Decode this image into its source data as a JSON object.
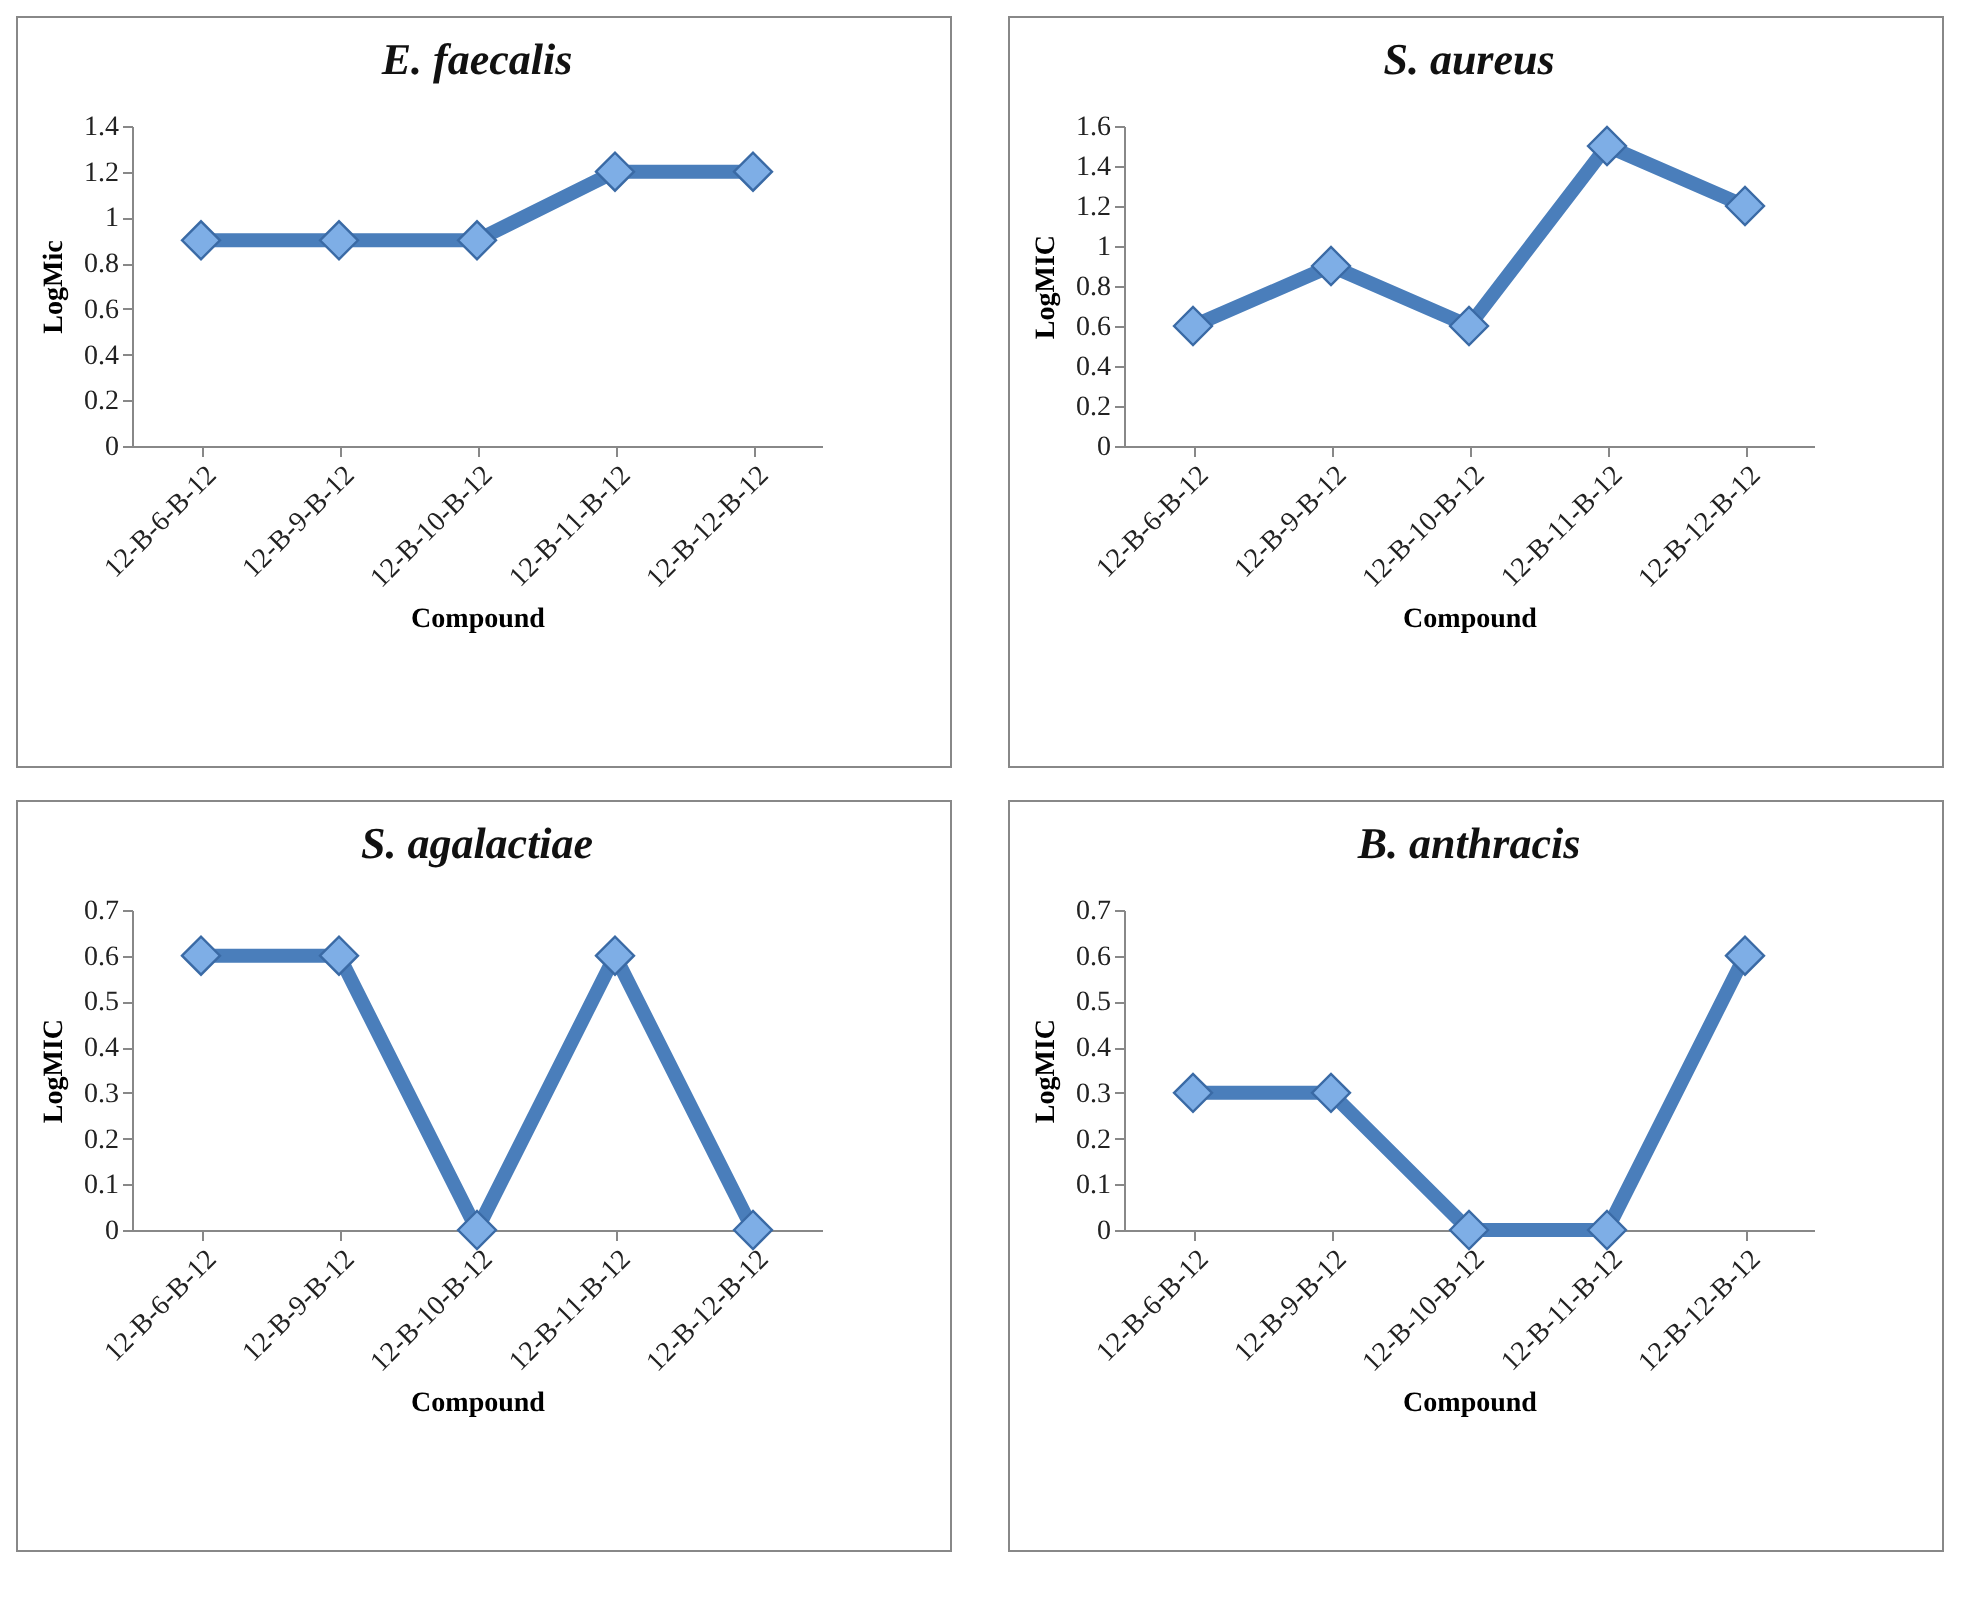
{
  "chart_data": [
    {
      "type": "line",
      "title": "E. faecalis",
      "xlabel": "Compound",
      "ylabel": "LogMic",
      "categories": [
        "12-B-6-B-12",
        "12-B-9-B-12",
        "12-B-10-B-12",
        "12-B-11-B-12",
        "12-B-12-B-12"
      ],
      "series": [
        {
          "color": "#4a7ebb",
          "values": [
            0.9,
            0.9,
            0.9,
            1.2,
            1.2
          ]
        }
      ],
      "ylim": [
        0,
        1.4
      ],
      "yticks": [
        0,
        0.2,
        0.4,
        0.6,
        0.8,
        1,
        1.2,
        1.4
      ],
      "grid": false,
      "legend": false,
      "marker": "diamond",
      "line_style": "solid"
    },
    {
      "type": "line",
      "title": "S. aureus",
      "xlabel": "Compound",
      "ylabel": "LogMIC",
      "categories": [
        "12-B-6-B-12",
        "12-B-9-B-12",
        "12-B-10-B-12",
        "12-B-11-B-12",
        "12-B-12-B-12"
      ],
      "series": [
        {
          "color": "#4a7ebb",
          "values": [
            0.6,
            0.9,
            0.6,
            1.5,
            1.2
          ]
        }
      ],
      "ylim": [
        0,
        1.6
      ],
      "yticks": [
        0,
        0.2,
        0.4,
        0.6,
        0.8,
        1,
        1.2,
        1.4,
        1.6
      ],
      "grid": false,
      "legend": false,
      "marker": "diamond",
      "line_style": "solid"
    },
    {
      "type": "line",
      "title": "S. agalactiae",
      "xlabel": "Compound",
      "ylabel": "LogMIC",
      "categories": [
        "12-B-6-B-12",
        "12-B-9-B-12",
        "12-B-10-B-12",
        "12-B-11-B-12",
        "12-B-12-B-12"
      ],
      "series": [
        {
          "color": "#4a7ebb",
          "values": [
            0.6,
            0.6,
            0,
            0.6,
            0
          ]
        }
      ],
      "ylim": [
        0,
        0.7
      ],
      "yticks": [
        0,
        0.1,
        0.2,
        0.3,
        0.4,
        0.5,
        0.6,
        0.7
      ],
      "grid": false,
      "legend": false,
      "marker": "diamond",
      "line_style": "solid"
    },
    {
      "type": "line",
      "title": "B. anthracis",
      "xlabel": "Compound",
      "ylabel": "LogMIC",
      "categories": [
        "12-B-6-B-12",
        "12-B-9-B-12",
        "12-B-10-B-12",
        "12-B-11-B-12",
        "12-B-12-B-12"
      ],
      "series": [
        {
          "color": "#4a7ebb",
          "values": [
            0.3,
            0.3,
            0,
            0,
            0.6
          ]
        }
      ],
      "ylim": [
        0,
        0.7
      ],
      "yticks": [
        0,
        0.1,
        0.2,
        0.3,
        0.4,
        0.5,
        0.6,
        0.7
      ],
      "grid": false,
      "legend": false,
      "marker": "diamond",
      "line_style": "solid"
    }
  ]
}
